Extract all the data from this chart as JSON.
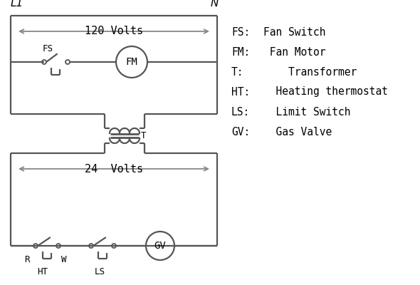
{
  "bg_color": "#ffffff",
  "line_color": "#555555",
  "arrow_color": "#888888",
  "text_color": "#000000",
  "legend": {
    "FS": "Fan Switch",
    "FM": "Fan Motor",
    "T": "Transformer",
    "HT": "Heating thermostat",
    "LS": "Limit Switch",
    "GV": "Gas Valve"
  }
}
